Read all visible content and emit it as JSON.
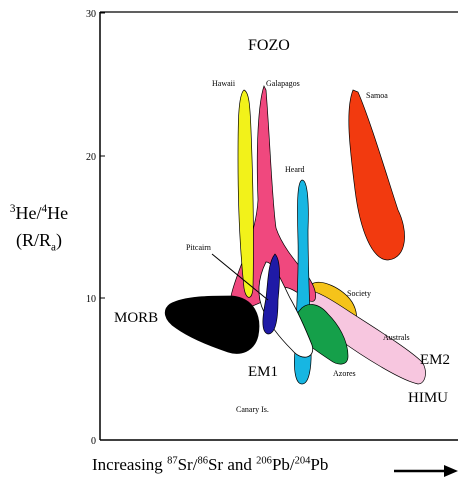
{
  "axes": {
    "y_ticks": [
      "30",
      "20",
      "10",
      "0"
    ],
    "y_label": {
      "sup1": "3",
      "main1": "He/",
      "sup2": "4",
      "main2": "He",
      "open": "(R/R",
      "sub": "a",
      "close": ")"
    },
    "x_label": {
      "prefix": "Increasing ",
      "sup1": "87",
      "t1": "Sr/",
      "sup2": "86",
      "t2": "Sr and ",
      "sup3": "206",
      "t3": "Pb/",
      "sup4": "204",
      "t4": "Pb"
    }
  },
  "labels": {
    "fozo": "FOZO",
    "hawaii": "Hawaii",
    "galapagos": "Galapagos",
    "samoa": "Samoa",
    "heard": "Heard",
    "pitcairn": "Pitcairn",
    "society": "Society",
    "australs": "Australs",
    "azores": "Azores",
    "canary": "Canary Is.",
    "morb": "MORB",
    "em1": "EM1",
    "em2": "EM2",
    "himu": "HIMU"
  },
  "colors": {
    "morb": "#000000",
    "hawaii": "#f2f21a",
    "galapagos": "#f0487e",
    "samoa": "#f23a0f",
    "heard": "#17b6e2",
    "pitcairn": "#1f1aa6",
    "canary": "#ffffff",
    "society": "#f5c31a",
    "azores": "#15a04a",
    "australs": "#f7c6df"
  }
}
